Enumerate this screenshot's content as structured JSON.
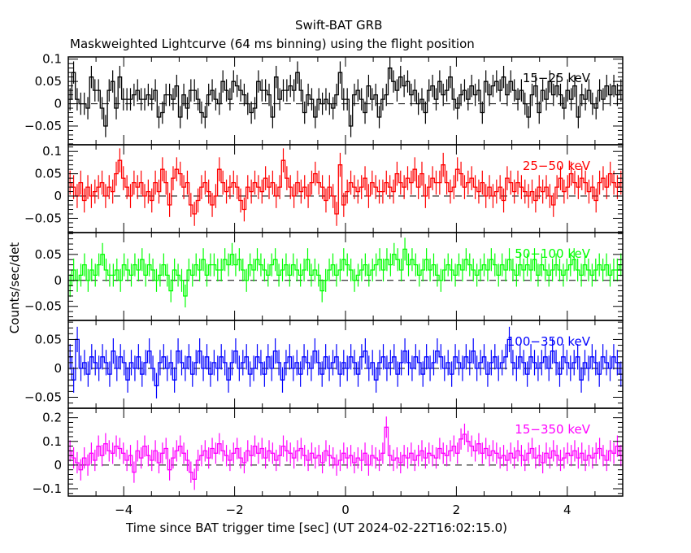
{
  "chart_data": {
    "type": "line",
    "title": "Swift-BAT GRB",
    "subtitle": "Maskweighted Lightcurve (64 ms binning) using the flight position",
    "xlabel": "Time since BAT trigger time [sec] (UT 2024-02-22T16:02:15.0)",
    "ylabel": "Counts/sec/det",
    "xlim": [
      -5,
      5
    ],
    "xticks": [
      -4,
      -2,
      0,
      2,
      4
    ],
    "xtick_labels": [
      "−4",
      "−2",
      "0",
      "2",
      "4"
    ],
    "bin_seconds": 0.064,
    "panels": [
      {
        "name": "15-25 keV",
        "label": "15−25 keV",
        "color": "#000000",
        "ylim": [
          -0.092,
          0.105
        ],
        "yticks": [
          0.1,
          0.05,
          0,
          -0.05
        ],
        "ytick_labels": [
          "0.1",
          "0.05",
          "0",
          "−0.05"
        ],
        "error": 0.025,
        "values": [
          0.01,
          0.07,
          0.01,
          0,
          0,
          -0.01,
          0.06,
          0.03,
          0.03,
          -0.01,
          -0.05,
          0.03,
          0.05,
          -0.01,
          0.06,
          0.01,
          0.01,
          0.01,
          0.02,
          0.03,
          0.01,
          0.01,
          0.02,
          0.01,
          0.03,
          -0.03,
          -0.02,
          0.02,
          0.02,
          0.01,
          0.04,
          -0.03,
          0.02,
          -0.01,
          0.03,
          0.03,
          0.01,
          -0.02,
          -0.03,
          0.02,
          0.03,
          0.01,
          0,
          0.05,
          0.03,
          0.01,
          0.05,
          0.04,
          0.03,
          0.02,
          0,
          -0.02,
          -0.01,
          0.05,
          0.03,
          0.03,
          0.02,
          -0.03,
          0.06,
          0.01,
          0.03,
          0.03,
          0.04,
          0.03,
          0.07,
          0.03,
          -0.02,
          0.02,
          0.01,
          -0.03,
          0.01,
          0,
          0.01,
          0,
          -0.01,
          0.02,
          0.07,
          0.01,
          0.01,
          -0.05,
          0.02,
          0.03,
          0.01,
          -0.02,
          0.04,
          0.01,
          0.02,
          -0.03,
          0.01,
          0.02,
          0.08,
          0.05,
          0.03,
          0.06,
          0.04,
          0.05,
          0.02,
          0.03,
          0,
          0.01,
          -0.02,
          0.03,
          0.04,
          0.01,
          0.05,
          0.02,
          0.03,
          0.06,
          0.01,
          -0.01,
          0.02,
          0.03,
          0.01,
          0.04,
          0.02,
          0.03,
          -0.02,
          0.05,
          0.02,
          0.04,
          0.05,
          0.03,
          0.06,
          0.02,
          0.05,
          0.03,
          0.01,
          0.03,
          0,
          -0.03,
          0.02,
          0.04,
          -0.02,
          0.03,
          0.01,
          0.05,
          0.02,
          0.04,
          0.02,
          -0.01,
          0.03,
          0.01,
          0.04,
          -0.03,
          0.02,
          0.01,
          0.03,
          0,
          -0.01,
          0.03,
          0.01,
          0.04,
          0.02,
          0.04,
          0.02,
          0.03
        ]
      },
      {
        "name": "25-50 keV",
        "label": "25−50 keV",
        "color": "#ff0000",
        "ylim": [
          -0.082,
          0.115
        ],
        "yticks": [
          0.1,
          0.05,
          0,
          -0.05
        ],
        "ytick_labels": [
          "0.1",
          "0.05",
          "0",
          "−0.05"
        ],
        "error": 0.027,
        "values": [
          0.03,
          0.02,
          0,
          0.03,
          -0.01,
          0.02,
          0,
          0.01,
          0.02,
          0.03,
          0,
          0.02,
          0.01,
          0.05,
          0.08,
          0.04,
          0.02,
          0,
          0.03,
          0.02,
          0.03,
          0,
          0.01,
          -0.01,
          0.03,
          0.01,
          0.06,
          0.03,
          -0.02,
          0.04,
          0.06,
          0.05,
          0.02,
          0.03,
          -0.02,
          -0.04,
          -0.01,
          0.02,
          0.03,
          0.01,
          -0.02,
          0,
          0.06,
          0.03,
          0.01,
          0.02,
          0.03,
          0.02,
          -0.01,
          -0.03,
          0.02,
          0.01,
          0.03,
          0.02,
          0.01,
          0.04,
          0.02,
          0.03,
          0,
          0.02,
          0.08,
          0.04,
          0.02,
          0,
          0.03,
          0.01,
          0.02,
          0,
          0.03,
          0.05,
          0.03,
          0.02,
          -0.01,
          0.02,
          0,
          -0.04,
          0.07,
          -0.02,
          0.01,
          0.03,
          0.02,
          0.01,
          0.02,
          0.04,
          0,
          0.03,
          0.02,
          0.01,
          0.01,
          0.03,
          0.02,
          0.01,
          0.05,
          0.03,
          0.02,
          0.04,
          0.03,
          0.06,
          0.02,
          0.05,
          0,
          0.02,
          0.04,
          0.03,
          0.03,
          0.07,
          0.03,
          0.01,
          0.02,
          0.06,
          0.05,
          0.02,
          0.03,
          0.04,
          0.02,
          0.01,
          0.03,
          0,
          0.02,
          0,
          0.01,
          0.02,
          -0.01,
          0.04,
          0.03,
          0.01,
          0.03,
          0.02,
          0.01,
          0,
          0.01,
          -0.01,
          0.02,
          0.01,
          0.02,
          0,
          -0.02,
          0.02,
          0.04,
          0.01,
          0.02,
          0.05,
          0.03,
          0.02,
          0.04,
          0.03,
          0.01,
          0.02,
          -0.01,
          0.03,
          0.04,
          0.02,
          0.05,
          0.03,
          0.02,
          0.03
        ]
      },
      {
        "name": "50-100 keV",
        "label": "50−100 keV",
        "color": "#00ff00",
        "ylim": [
          -0.077,
          0.092
        ],
        "yticks": [
          0.05,
          0,
          -0.05
        ],
        "ytick_labels": [
          "0.05",
          "0",
          "−0.05"
        ],
        "error": 0.022,
        "values": [
          -0.01,
          0.02,
          0,
          0.01,
          0.03,
          0,
          0.02,
          0.01,
          0.03,
          0.05,
          0.02,
          0.01,
          0.01,
          0.02,
          0,
          0.03,
          0.02,
          0.01,
          0.03,
          0.02,
          0.04,
          0.01,
          0.03,
          0.02,
          0,
          0.01,
          0.03,
          0.01,
          -0.02,
          0.02,
          0.01,
          0,
          -0.03,
          0.02,
          0.01,
          0.03,
          0.02,
          0.04,
          0.01,
          0.03,
          0.03,
          0.02,
          0.02,
          0.04,
          0.03,
          0.05,
          0.03,
          0.04,
          0.02,
          0,
          0.03,
          0.02,
          0.04,
          0.03,
          0.02,
          0.01,
          0.03,
          0.04,
          0.01,
          0.02,
          0.03,
          0.01,
          0.03,
          0.02,
          0.01,
          0.02,
          0.04,
          0.01,
          0.02,
          0.01,
          -0.02,
          0,
          0.02,
          0.03,
          0.01,
          0.02,
          0.04,
          0.03,
          0.02,
          0,
          0.01,
          0.02,
          0.03,
          0.01,
          0.02,
          0.03,
          0.04,
          0.02,
          0.04,
          0.03,
          0.05,
          0.04,
          0.02,
          0.06,
          0.03,
          0.04,
          0.03,
          0.01,
          0.02,
          0.04,
          0.02,
          0.03,
          0.01,
          0,
          0.02,
          0.03,
          0.02,
          0.01,
          0.03,
          0.02,
          0.04,
          0.03,
          0.02,
          0.01,
          0.02,
          0.03,
          0.02,
          0.04,
          0.03,
          0.01,
          0.03,
          0.02,
          0.04,
          0.02,
          0.01,
          0.03,
          0.02,
          0.03,
          0.02,
          0.04,
          0.01,
          0.03,
          0.02,
          0.01,
          0.02,
          0.03,
          0.02,
          0.01,
          0.02,
          0.03,
          0.04,
          0.02,
          0.01,
          0.03,
          0.02,
          0.01,
          0.02,
          0.03,
          0.02,
          0.03,
          0.01,
          0.02,
          0.02,
          0.03
        ]
      },
      {
        "name": "100-350 keV",
        "label": "100−350 keV",
        "color": "#0000ff",
        "ylim": [
          -0.069,
          0.083
        ],
        "yticks": [
          0.05,
          0,
          -0.05
        ],
        "ytick_labels": [
          "0.05",
          "0",
          "−0.05"
        ],
        "error": 0.022,
        "values": [
          0.02,
          -0.02,
          0.05,
          0,
          0.01,
          -0.01,
          0.02,
          0.01,
          0,
          0.02,
          0.01,
          -0.01,
          0.03,
          0,
          0.02,
          0.01,
          -0.02,
          0.01,
          0,
          0.02,
          -0.01,
          0.01,
          0.03,
          0,
          -0.03,
          0.01,
          0.02,
          0,
          0.01,
          -0.02,
          0.03,
          0.01,
          0,
          0.02,
          -0.01,
          0.01,
          0.03,
          0,
          0.02,
          -0.01,
          0.01,
          0,
          0.02,
          0.01,
          -0.02,
          0.01,
          0.03,
          0,
          0.01,
          0.02,
          -0.01,
          0,
          0.02,
          0.01,
          -0.01,
          0.02,
          0,
          0.03,
          0.01,
          -0.02,
          0.01,
          0.02,
          0,
          0.01,
          -0.01,
          0.02,
          0.01,
          0,
          0.03,
          0.01,
          -0.01,
          0.02,
          0,
          0.01,
          0.02,
          -0.01,
          0.01,
          0,
          0.02,
          0.01,
          -0.01,
          0.02,
          0.03,
          0,
          0.01,
          -0.02,
          0.01,
          0.02,
          0,
          0.01,
          0.02,
          -0.01,
          0.01,
          0.03,
          0.01,
          0,
          0.02,
          0.01,
          -0.01,
          0.02,
          0,
          0.01,
          0.03,
          0.02,
          0,
          0.01,
          -0.01,
          0.02,
          0.01,
          0,
          0.02,
          0.01,
          0.03,
          0,
          0.01,
          0.02,
          -0.01,
          0.01,
          0.02,
          0,
          0.01,
          0.02,
          0.05,
          0.01,
          0,
          0.02,
          0.01,
          -0.01,
          0.02,
          0.01,
          0,
          0.01,
          0.02,
          0,
          0.03,
          0.01,
          -0.01,
          0.02,
          0.01,
          0,
          0.01,
          0.02,
          -0.02,
          0.01,
          0,
          0.02,
          0.01,
          -0.01,
          0.02,
          0.01,
          0,
          0.02,
          0.01,
          -0.01
        ]
      },
      {
        "name": "15-350 keV",
        "label": "15−350 keV",
        "color": "#ff00ff",
        "ylim": [
          -0.131,
          0.24
        ],
        "yticks": [
          0.2,
          0.1,
          0,
          -0.1
        ],
        "ytick_labels": [
          "0.2",
          "0.1",
          "0",
          "−0.1"
        ],
        "error": 0.045,
        "values": [
          0.06,
          0.03,
          0.01,
          -0.02,
          0.03,
          0,
          0.05,
          0.02,
          0.08,
          0.04,
          0.09,
          0.06,
          0.05,
          0.08,
          0.07,
          0.05,
          0.02,
          0.04,
          -0.03,
          0.06,
          0.03,
          0.08,
          0.04,
          0.02,
          0.06,
          0.01,
          0.05,
          0.07,
          -0.02,
          0.03,
          0.06,
          0.08,
          0.05,
          0.02,
          -0.03,
          -0.06,
          0.02,
          0.04,
          0.06,
          0.03,
          0.07,
          0.05,
          0.09,
          0.06,
          0.04,
          0.02,
          0.05,
          0.07,
          0.03,
          0.01,
          0.06,
          0.04,
          0.08,
          0.05,
          0.07,
          0.03,
          0.06,
          0.05,
          0.02,
          0.04,
          0.08,
          0.06,
          0.05,
          0.03,
          0.06,
          0.07,
          0.04,
          0.02,
          0.05,
          0.03,
          0.04,
          0.01,
          0.06,
          0.04,
          0.03,
          0,
          0.02,
          0.05,
          0.03,
          0.04,
          0.01,
          0.03,
          0.02,
          0.05,
          0,
          0.04,
          0.03,
          0.02,
          0.05,
          0.16,
          0.04,
          0.02,
          0.03,
          0.01,
          0.04,
          0.03,
          0.05,
          0.02,
          0.04,
          0.06,
          0.03,
          0.05,
          0.04,
          0.03,
          0.07,
          0.05,
          0.04,
          0.06,
          0.08,
          0.05,
          0.11,
          0.13,
          0.1,
          0.08,
          0.06,
          0.09,
          0.05,
          0.07,
          0.04,
          0.06,
          0.05,
          0.03,
          0.04,
          0.02,
          0.05,
          0.03,
          0.06,
          0.04,
          0.02,
          0.05,
          0.07,
          0.03,
          0.04,
          0.01,
          0.05,
          0.03,
          0.06,
          0.04,
          0.02,
          0.03,
          0.05,
          0.04,
          0.06,
          0.03,
          0.05,
          0.02,
          0.04,
          0.03,
          0.05,
          0.07,
          0.04,
          0.02,
          0.06,
          0.05,
          0.08,
          0.04
        ]
      }
    ]
  }
}
